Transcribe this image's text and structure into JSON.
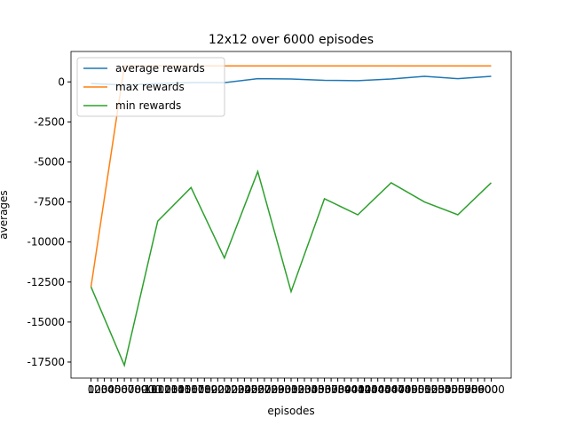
{
  "chart_data": {
    "type": "line",
    "title": "12x12 over 6000 episodes",
    "xlabel": "episodes",
    "ylabel": "averages",
    "x": [
      0,
      500,
      1000,
      1500,
      2000,
      2500,
      3000,
      3500,
      4000,
      4500,
      5000,
      5500,
      6000
    ],
    "series": [
      {
        "name": "average rewards",
        "color": "#1f77b4",
        "values": [
          -100,
          -200,
          -100,
          -50,
          -50,
          200,
          180,
          100,
          80,
          180,
          350,
          200,
          350
        ]
      },
      {
        "name": "max rewards",
        "color": "#ff7f0e",
        "values": [
          -12800,
          1000,
          1000,
          1000,
          1000,
          1000,
          1000,
          1000,
          1000,
          1000,
          1000,
          1000,
          1000
        ]
      },
      {
        "name": "min rewards",
        "color": "#2ca02c",
        "values": [
          -12800,
          -17700,
          -8700,
          -6600,
          -11000,
          -5600,
          -13100,
          -7300,
          -8300,
          -6300,
          -7500,
          -8300,
          -6300
        ]
      }
    ],
    "xlim": [
      -300,
      6300
    ],
    "xticks": [
      0,
      100,
      200,
      300,
      400,
      500,
      600,
      700,
      800,
      900,
      1000,
      1100,
      1200,
      1300,
      1400,
      1500,
      1600,
      1700,
      1800,
      1900,
      2000,
      2100,
      2200,
      2300,
      2400,
      2500,
      2600,
      2700,
      2800,
      2900,
      3000,
      3100,
      3200,
      3300,
      3400,
      3500,
      3600,
      3700,
      3800,
      3900,
      4000,
      4100,
      4200,
      4300,
      4400,
      4500,
      4600,
      4700,
      4800,
      4900,
      5000,
      5100,
      5200,
      5300,
      5400,
      5500,
      5600,
      5700,
      5800,
      5900,
      6000
    ],
    "ylim": [
      -18500,
      1900
    ],
    "yticks": [
      -17500,
      -15000,
      -12500,
      -10000,
      -7500,
      -5000,
      -2500,
      0
    ],
    "legend": "upper left"
  }
}
